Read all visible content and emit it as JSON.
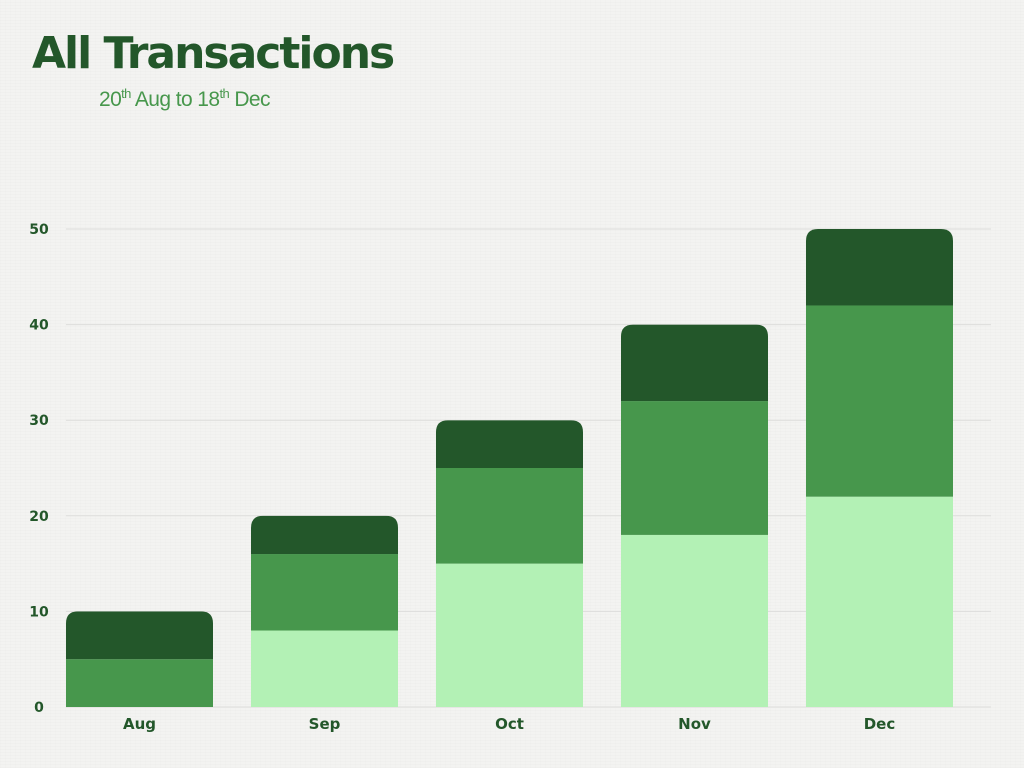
{
  "header": {
    "title": "All Transactions",
    "subtitle_parts": {
      "start_day": "20",
      "start_suffix": "th",
      "start_month": " Aug to ",
      "end_day": "18",
      "end_suffix": "th",
      "end_month": " Dec"
    }
  },
  "colors": {
    "title": "#23572a",
    "subtitle": "#47974c",
    "axis_text": "#23572a",
    "gridline": "#dddddb",
    "series_light": "#b3f1b5",
    "series_mid": "#47974c",
    "series_dark": "#23572a"
  },
  "chart_data": {
    "type": "bar",
    "stacked": true,
    "categories": [
      "Aug",
      "Sep",
      "Oct",
      "Nov",
      "Dec"
    ],
    "series": [
      {
        "values": [
          0,
          8,
          15,
          18,
          22
        ],
        "color": "#b3f1b5"
      },
      {
        "values": [
          5,
          8,
          10,
          14,
          20
        ],
        "color": "#47974c"
      },
      {
        "values": [
          5,
          4,
          5,
          8,
          8
        ],
        "color": "#23572a"
      }
    ],
    "ylim": [
      0,
      50
    ],
    "yticks": [
      0,
      10,
      20,
      30,
      40,
      50
    ],
    "grid": true,
    "legend": "none"
  }
}
